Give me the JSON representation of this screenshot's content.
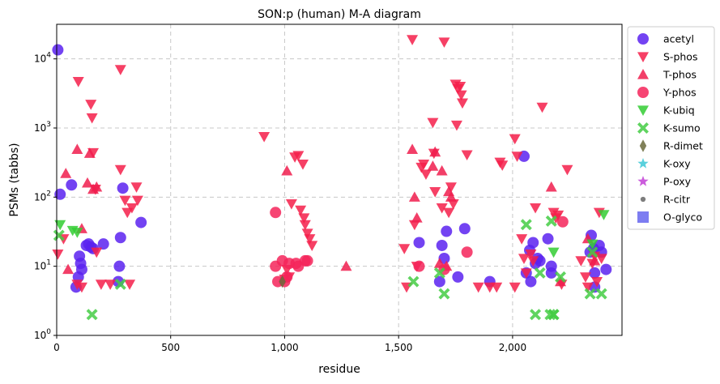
{
  "chart_data": {
    "type": "scatter",
    "title": "SON:p (human) M-A diagram",
    "xlabel": "residue",
    "ylabel": "PSMs (tabbs)",
    "xlim": [
      0,
      2480
    ],
    "ylim_log10": [
      0,
      4.5
    ],
    "y_scale": "log",
    "x_ticks": [
      0,
      500,
      1000,
      1500,
      2000
    ],
    "x_tick_labels": [
      "0",
      "500",
      "1,000",
      "1,500",
      "2,000"
    ],
    "y_ticks": [
      1,
      10,
      100,
      1000,
      10000
    ],
    "y_tick_labels": [
      "10^0",
      "10^1",
      "10^2",
      "10^3",
      "10^4"
    ],
    "grid": true,
    "legend_position": "right-outside",
    "series": [
      {
        "name": "acetyl",
        "marker": "circle",
        "color": "#5a22f0",
        "points": [
          [
            5,
            13500
          ],
          [
            15,
            110
          ],
          [
            65,
            150
          ],
          [
            85,
            5
          ],
          [
            95,
            7
          ],
          [
            100,
            14
          ],
          [
            105,
            11
          ],
          [
            110,
            9
          ],
          [
            130,
            20
          ],
          [
            140,
            21
          ],
          [
            150,
            19
          ],
          [
            160,
            18
          ],
          [
            205,
            21
          ],
          [
            270,
            6
          ],
          [
            275,
            10
          ],
          [
            280,
            26
          ],
          [
            290,
            135
          ],
          [
            370,
            43
          ],
          [
            1590,
            22
          ],
          [
            1680,
            6
          ],
          [
            1690,
            20
          ],
          [
            1700,
            13
          ],
          [
            1710,
            32
          ],
          [
            1760,
            7
          ],
          [
            1790,
            35
          ],
          [
            1900,
            6
          ],
          [
            2050,
            390
          ],
          [
            2060,
            8
          ],
          [
            2075,
            17
          ],
          [
            2080,
            6
          ],
          [
            2090,
            22
          ],
          [
            2100,
            11
          ],
          [
            2110,
            13
          ],
          [
            2120,
            12
          ],
          [
            2155,
            25
          ],
          [
            2170,
            10
          ],
          [
            2170,
            8
          ],
          [
            2340,
            16
          ],
          [
            2345,
            28
          ],
          [
            2355,
            18
          ],
          [
            2360,
            5
          ],
          [
            2360,
            8
          ],
          [
            2380,
            20
          ],
          [
            2390,
            16
          ],
          [
            2410,
            9
          ]
        ]
      },
      {
        "name": "S-phos",
        "marker": "tri-down",
        "color": "#f51f4a",
        "points": [
          [
            5,
            15
          ],
          [
            30,
            25
          ],
          [
            90,
            5.5
          ],
          [
            95,
            4700
          ],
          [
            110,
            5
          ],
          [
            150,
            2200
          ],
          [
            155,
            1400
          ],
          [
            160,
            440
          ],
          [
            170,
            130
          ],
          [
            175,
            16
          ],
          [
            195,
            5.5
          ],
          [
            235,
            5.5
          ],
          [
            280,
            7000
          ],
          [
            280,
            250
          ],
          [
            300,
            90
          ],
          [
            310,
            60
          ],
          [
            320,
            5.5
          ],
          [
            330,
            70
          ],
          [
            350,
            140
          ],
          [
            355,
            90
          ],
          [
            910,
            750
          ],
          [
            1000,
            6.5
          ],
          [
            1010,
            9
          ],
          [
            1020,
            7
          ],
          [
            1030,
            80
          ],
          [
            1045,
            380
          ],
          [
            1060,
            400
          ],
          [
            1070,
            65
          ],
          [
            1080,
            300
          ],
          [
            1085,
            50
          ],
          [
            1090,
            40
          ],
          [
            1100,
            30
          ],
          [
            1110,
            25
          ],
          [
            1120,
            20
          ],
          [
            1525,
            18
          ],
          [
            1535,
            5
          ],
          [
            1560,
            19000
          ],
          [
            1570,
            40
          ],
          [
            1580,
            10
          ],
          [
            1600,
            270
          ],
          [
            1610,
            300
          ],
          [
            1620,
            215
          ],
          [
            1650,
            1200
          ],
          [
            1655,
            430
          ],
          [
            1660,
            120
          ],
          [
            1690,
            70
          ],
          [
            1700,
            17500
          ],
          [
            1720,
            60
          ],
          [
            1730,
            140
          ],
          [
            1740,
            80
          ],
          [
            1750,
            4300
          ],
          [
            1755,
            1100
          ],
          [
            1760,
            3700
          ],
          [
            1770,
            4000
          ],
          [
            1775,
            3000
          ],
          [
            1780,
            2300
          ],
          [
            1800,
            410
          ],
          [
            1850,
            5
          ],
          [
            1900,
            5
          ],
          [
            1930,
            5
          ],
          [
            1945,
            320
          ],
          [
            1955,
            290
          ],
          [
            2010,
            700
          ],
          [
            2010,
            5
          ],
          [
            2020,
            390
          ],
          [
            2040,
            25
          ],
          [
            2050,
            13
          ],
          [
            2060,
            8
          ],
          [
            2080,
            15
          ],
          [
            2090,
            12
          ],
          [
            2100,
            70
          ],
          [
            2130,
            2000
          ],
          [
            2180,
            60
          ],
          [
            2190,
            50
          ],
          [
            2200,
            55
          ],
          [
            2215,
            5.5
          ],
          [
            2240,
            250
          ],
          [
            2300,
            12
          ],
          [
            2320,
            7
          ],
          [
            2330,
            5
          ],
          [
            2350,
            11
          ],
          [
            2360,
            14
          ],
          [
            2370,
            6
          ],
          [
            2380,
            60
          ],
          [
            2390,
            13
          ]
        ]
      },
      {
        "name": "T-phos",
        "marker": "tri-up",
        "color": "#f01d4e",
        "points": [
          [
            40,
            220
          ],
          [
            50,
            9
          ],
          [
            90,
            490
          ],
          [
            110,
            35
          ],
          [
            135,
            160
          ],
          [
            145,
            430
          ],
          [
            160,
            130
          ],
          [
            175,
            140
          ],
          [
            1010,
            240
          ],
          [
            1270,
            10
          ],
          [
            1560,
            490
          ],
          [
            1570,
            100
          ],
          [
            1580,
            50
          ],
          [
            1650,
            280
          ],
          [
            1660,
            450
          ],
          [
            1680,
            11
          ],
          [
            1690,
            240
          ],
          [
            1710,
            10
          ],
          [
            1720,
            120
          ],
          [
            1730,
            100
          ],
          [
            2170,
            140
          ],
          [
            2210,
            6
          ],
          [
            2330,
            25
          ],
          [
            2360,
            12
          ]
        ]
      },
      {
        "name": "Y-phos",
        "marker": "circle",
        "color": "#f5245a",
        "points": [
          [
            960,
            10
          ],
          [
            970,
            6
          ],
          [
            990,
            12
          ],
          [
            1000,
            6
          ],
          [
            1010,
            7
          ],
          [
            1020,
            11
          ],
          [
            1050,
            11
          ],
          [
            1060,
            10
          ],
          [
            1090,
            12
          ],
          [
            1100,
            12
          ],
          [
            960,
            60
          ],
          [
            1590,
            10
          ],
          [
            1700,
            9
          ],
          [
            1800,
            16
          ],
          [
            2220,
            44
          ]
        ]
      },
      {
        "name": "K-ubiq",
        "marker": "tri-down",
        "color": "#33cc33",
        "points": [
          [
            15,
            40
          ],
          [
            70,
            33
          ],
          [
            90,
            31
          ],
          [
            2180,
            16
          ],
          [
            2350,
            21
          ],
          [
            2400,
            56
          ]
        ]
      },
      {
        "name": "K-sumo",
        "marker": "cross",
        "color": "#44cc44",
        "points": [
          [
            10,
            28
          ],
          [
            155,
            2
          ],
          [
            280,
            5.5
          ],
          [
            1565,
            6
          ],
          [
            1680,
            8
          ],
          [
            1700,
            4
          ],
          [
            2060,
            40
          ],
          [
            2100,
            2
          ],
          [
            2120,
            8
          ],
          [
            2165,
            2
          ],
          [
            2180,
            2
          ],
          [
            2170,
            45
          ],
          [
            2180,
            2
          ],
          [
            2210,
            7
          ],
          [
            2340,
            4
          ],
          [
            2350,
            16
          ],
          [
            2390,
            4
          ]
        ]
      },
      {
        "name": "R-dimet",
        "marker": "diamond",
        "color": "#6b6b3c",
        "points": [
          [
            990,
            6
          ]
        ]
      },
      {
        "name": "K-oxy",
        "marker": "star",
        "color": "#3cc8d6",
        "points": []
      },
      {
        "name": "P-oxy",
        "marker": "star",
        "color": "#c23fd6",
        "points": []
      },
      {
        "name": "R-citr",
        "marker": "small-dot",
        "color": "#666666",
        "points": []
      },
      {
        "name": "O-glyco",
        "marker": "square",
        "color": "#6666ee",
        "points": []
      }
    ]
  }
}
